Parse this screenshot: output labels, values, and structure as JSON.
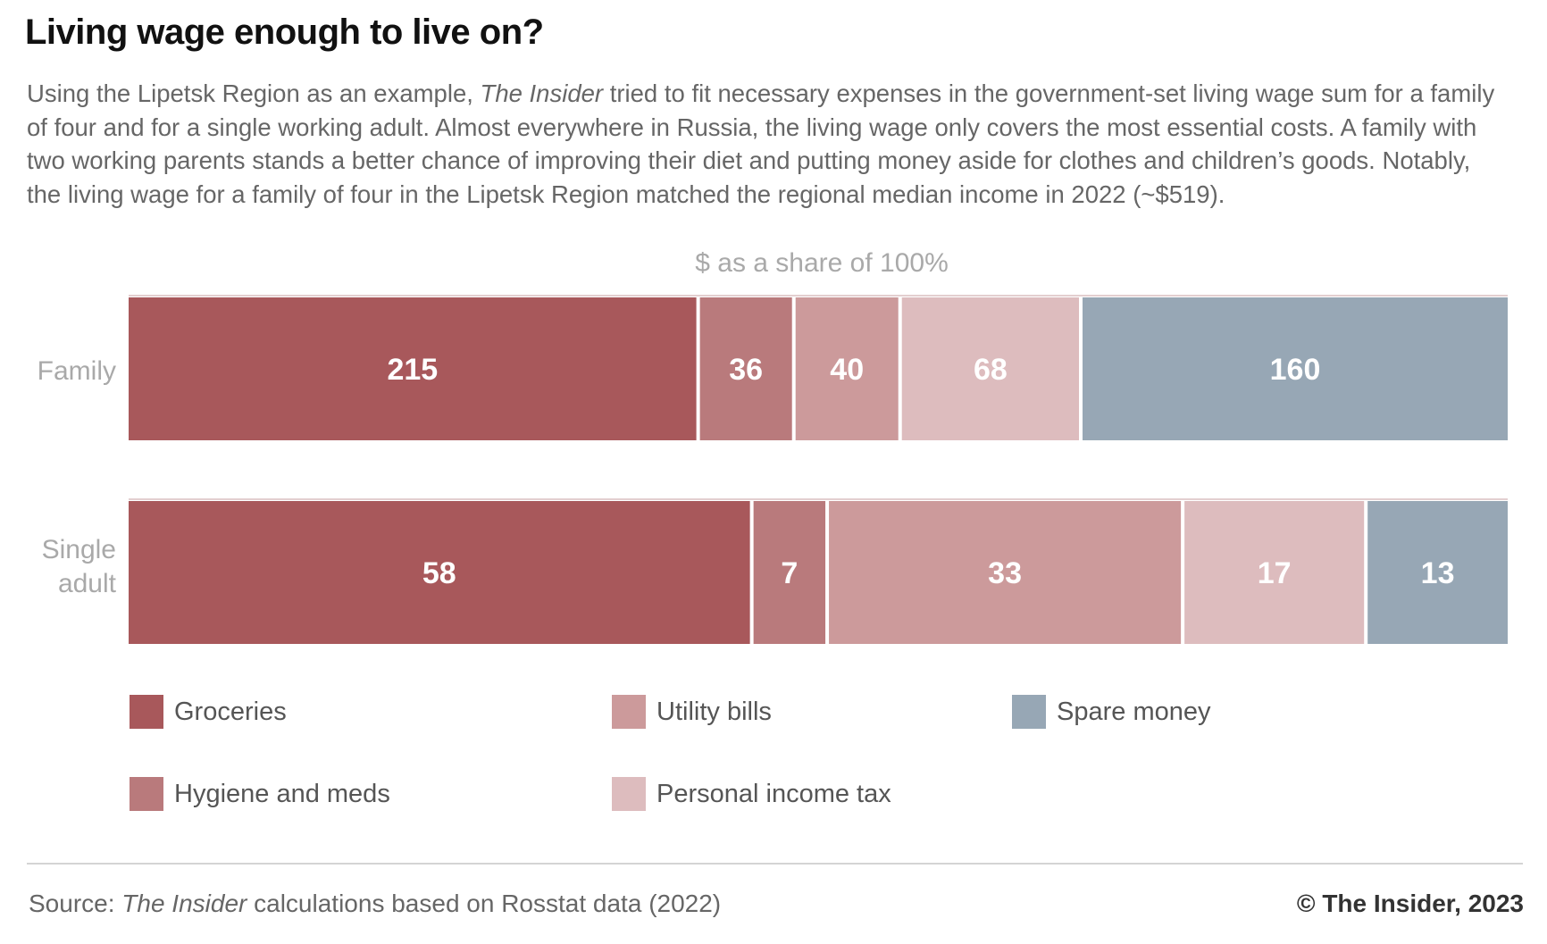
{
  "chart_data": {
    "type": "bar",
    "orientation": "horizontal",
    "stacked": true,
    "normalized": true,
    "title": "Living wage enough to live on?",
    "subtitle_parts": [
      "Using the Lipetsk Region as an example, ",
      "The Insider",
      " tried to fit necessary expenses in the government-set living wage sum for a family of four and for a single working adult. Almost everywhere in Russia, the living wage only covers the most essential costs. A family with two working parents stands a better chance of improving their diet and putting money aside for clothes and children’s goods. Notably, the living wage for a family of four in the Lipetsk Region matched the regional median income in 2022 (~$519)."
    ],
    "axis_caption": "$ as a share of 100%",
    "categories": [
      "Family",
      "Single adult"
    ],
    "series": [
      {
        "name": "Groceries",
        "color": "#a8585b",
        "values": [
          215,
          58
        ]
      },
      {
        "name": "Hygiene and meds",
        "color": "#b97a7c",
        "values": [
          36,
          7
        ]
      },
      {
        "name": "Utility bills",
        "color": "#cc9a9b",
        "values": [
          40,
          33
        ]
      },
      {
        "name": "Personal income tax",
        "color": "#ddbcbe",
        "values": [
          68,
          17
        ]
      },
      {
        "name": "Spare money",
        "color": "#97a7b5",
        "values": [
          160,
          13
        ]
      }
    ],
    "legend_layout": [
      [
        "Groceries",
        "Utility bills",
        "Spare money"
      ],
      [
        "Hygiene and meds",
        "Personal income tax"
      ]
    ],
    "legend_position": "bottom",
    "grid": false
  },
  "footer": {
    "source_prefix": "Source: ",
    "source_em": "The Insider",
    "source_suffix": " calculations based on Rosstat data (2022)",
    "credit": "© The Insider, 2023"
  }
}
